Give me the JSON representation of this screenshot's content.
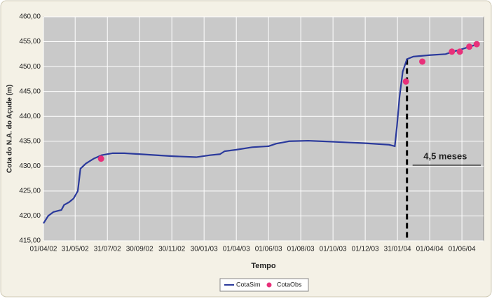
{
  "chart_data": {
    "type": "line",
    "x_label": "Tempo",
    "y_label": "Cota do N.A. do Açude (m)",
    "xlim": [
      "01/04/02",
      "12/07/04"
    ],
    "xticks": [
      "01/04/02",
      "31/05/02",
      "31/07/02",
      "30/09/02",
      "30/11/02",
      "30/01/03",
      "01/04/03",
      "01/06/03",
      "01/08/03",
      "01/10/03",
      "01/12/03",
      "31/01/04",
      "01/04/04",
      "01/06/04"
    ],
    "ylim": [
      415,
      460
    ],
    "yticks": [
      {
        "value": 415,
        "label": "415,00"
      },
      {
        "value": 420,
        "label": "420,00"
      },
      {
        "value": 425,
        "label": "425,00"
      },
      {
        "value": 430,
        "label": "430,00"
      },
      {
        "value": 435,
        "label": "435,00"
      },
      {
        "value": 440,
        "label": "440,00"
      },
      {
        "value": 445,
        "label": "445,00"
      },
      {
        "value": 450,
        "label": "450,00"
      },
      {
        "value": 455,
        "label": "455,00"
      },
      {
        "value": 460,
        "label": "460,00"
      }
    ],
    "grid": true,
    "legend_position": "bottom",
    "annotation": "4,5 meses",
    "series": [
      {
        "name": "CotaSim",
        "type": "line",
        "color": "#2b3a9c",
        "x": [
          "01/04/02",
          "10/04/02",
          "20/04/02",
          "05/05/02",
          "10/05/02",
          "20/05/02",
          "28/05/02",
          "05/06/02",
          "10/06/02",
          "20/06/02",
          "05/07/02",
          "20/07/02",
          "10/08/02",
          "01/09/02",
          "01/10/02",
          "01/12/02",
          "15/01/03",
          "10/02/03",
          "01/03/03",
          "10/03/03",
          "01/04/03",
          "01/05/03",
          "01/06/03",
          "15/06/03",
          "10/07/03",
          "15/08/03",
          "01/10/03",
          "01/12/03",
          "15/01/04",
          "26/01/04",
          "30/01/04",
          "04/02/04",
          "10/02/04",
          "18/02/04",
          "01/03/04",
          "01/04/04",
          "01/05/04",
          "15/05/04",
          "01/06/04",
          "01/07/04"
        ],
        "values": [
          418.5,
          420,
          420.8,
          421.2,
          422.2,
          422.8,
          423.5,
          425,
          429.5,
          430.5,
          431.5,
          432.2,
          432.6,
          432.6,
          432.4,
          432.0,
          431.8,
          432.2,
          432.4,
          433.0,
          433.3,
          433.8,
          434.0,
          434.5,
          435.0,
          435.1,
          434.9,
          434.6,
          434.3,
          434.0,
          438,
          444,
          449,
          451.5,
          452.0,
          452.3,
          452.5,
          453.0,
          453.5,
          454.5
        ]
      },
      {
        "name": "CotaObs",
        "type": "scatter",
        "color": "#e8307a",
        "x": [
          "19/07/02",
          "16/02/04",
          "18/03/04",
          "13/05/04",
          "28/05/04",
          "15/06/04",
          "29/06/04"
        ],
        "values": [
          431.5,
          447,
          451,
          453,
          453,
          454,
          454.5
        ]
      }
    ]
  }
}
